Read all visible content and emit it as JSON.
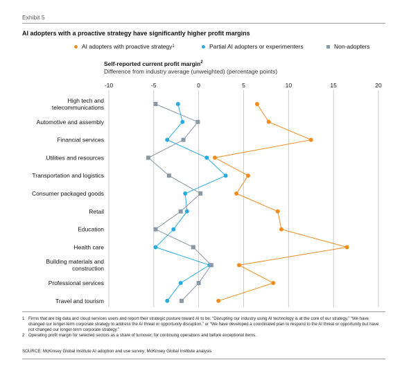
{
  "exhibit": "Exhibit 5",
  "title": "AI adopters with a proactive strategy have significantly higher profit margins",
  "colors": {
    "proactive": "#F28C1E",
    "partial": "#29ABE2",
    "non": "#8A97A5",
    "grid": "#bfbfbf"
  },
  "legend": [
    {
      "label": "AI adopters with proactive strategy",
      "sup": "1",
      "marker": "circle",
      "color": "#F28C1E"
    },
    {
      "label": "Partial AI adopters or experimenters",
      "sup": "",
      "marker": "circle",
      "color": "#29ABE2"
    },
    {
      "label": "Non-adopters",
      "sup": "",
      "marker": "square",
      "color": "#8A97A5"
    }
  ],
  "subtitle": "Self-reported current profit margin",
  "subtitle_sup": "2",
  "subnote": "Difference from industry average (unweighted) (percentage points)",
  "chart_data": {
    "type": "line",
    "orientation": "horizontal",
    "xlim": [
      -10,
      20
    ],
    "xticks": [
      "-10",
      "-5",
      "0",
      "5",
      "10",
      "15",
      "20"
    ],
    "xtick_values": [
      -10,
      -5,
      0,
      5,
      10,
      15,
      20
    ],
    "categories": [
      [
        "High tech and",
        "telecommunications"
      ],
      [
        "Automotive and assembly"
      ],
      [
        "Financial services"
      ],
      [
        "Utilities and resources"
      ],
      [
        "Transportation and logistics"
      ],
      [
        "Consumer packaged goods"
      ],
      [
        "Retail"
      ],
      [
        "Education"
      ],
      [
        "Health care"
      ],
      [
        "Building materials and",
        "construction"
      ],
      [
        "Professional services"
      ],
      [
        "Travel and tourism"
      ]
    ],
    "series": [
      {
        "name": "AI adopters with proactive strategy",
        "marker": "circle",
        "color": "#F28C1E",
        "values": [
          6.5,
          7.8,
          12.5,
          1.8,
          5.5,
          4.2,
          8.8,
          9.2,
          16.5,
          4.5,
          8.3,
          2.2
        ]
      },
      {
        "name": "Partial AI adopters or experimenters",
        "marker": "circle",
        "color": "#29ABE2",
        "values": [
          -2.3,
          -1.8,
          -3.5,
          0.9,
          3.0,
          -1.5,
          -1.3,
          -2.8,
          -4.8,
          1.2,
          -2.0,
          -3.5
        ]
      },
      {
        "name": "Non-adopters",
        "marker": "square",
        "color": "#8A97A5",
        "values": [
          -4.8,
          -0.1,
          -1.7,
          -5.6,
          -3.3,
          0.2,
          -2.0,
          -4.8,
          -0.6,
          1.4,
          0.0,
          -1.9
        ]
      }
    ],
    "grid": true
  },
  "footnotes": [
    {
      "num": "1",
      "text": "Firms that are big data and cloud services users and report their strategic posture toward AI to be: “Disrupting our industry using AI technology is at the core of our strategy,” “We have changed our longer-term corporate strategy to address the AI threat or opportunity disruption,” or “We have developed a coordinated plan to respond to the AI threat or opportunity but have not changed our longer-term corporate strategy.”"
    },
    {
      "num": "2",
      "text": "Operating profit margin for selected sectors as a share of turnover, for continuing operations and before exceptional items."
    }
  ],
  "source": "SOURCE: McKinsey Global Institute AI adoption and use survey; McKinsey Global Institute analysis"
}
